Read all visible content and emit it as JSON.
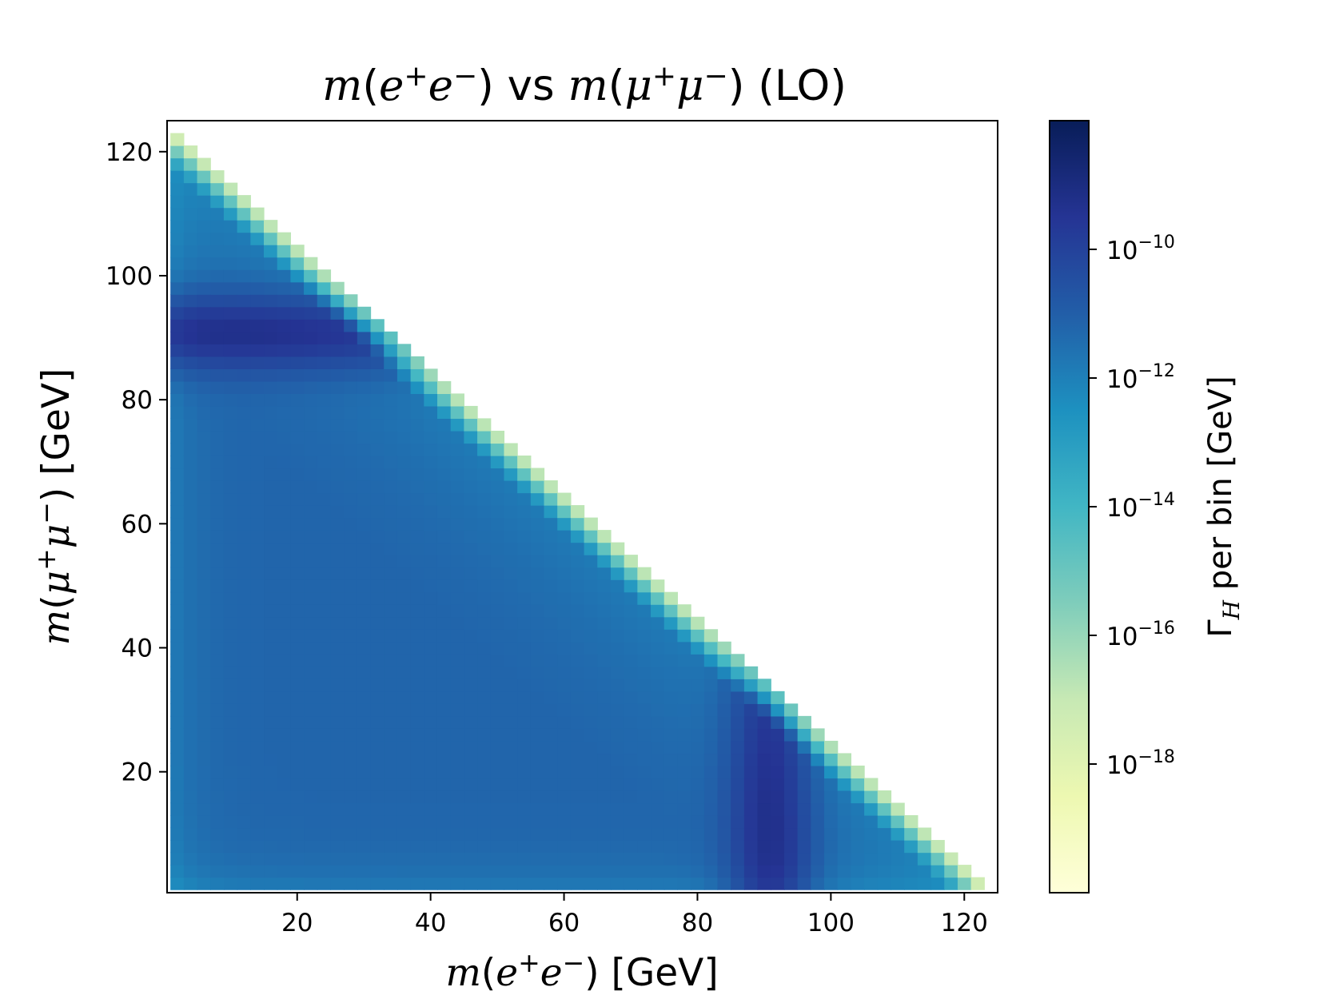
{
  "chart_data": {
    "type": "heatmap",
    "title": "m(e⁺e⁻) vs m(μ⁺μ⁻) (LO)",
    "xlabel": "m(e⁺e⁻) [GeV]",
    "ylabel": "m(μ⁺μ⁻) [GeV]",
    "colorbar_label": "Γ_H per bin [GeV]",
    "xlim": [
      0.5,
      125
    ],
    "ylim": [
      0.5,
      125
    ],
    "x_ticks": [
      20,
      40,
      60,
      80,
      100,
      120
    ],
    "y_ticks": [
      20,
      40,
      60,
      80,
      100,
      120
    ],
    "bin_width_gev": 2,
    "colorbar": {
      "scale": "log",
      "range": [
        1e-20,
        1e-08
      ],
      "tick_exponents": [
        -10,
        -12,
        -14,
        -16,
        -18
      ],
      "tick_base": "10",
      "colormap": "YlGnBu"
    },
    "description_values": {
      "kinematic_boundary": "m(e⁺e⁻) + m(μ⁺μ⁻) ≤ 125 GeV",
      "z_peak_gev": 91,
      "peak_log10_density": -8.5,
      "typical_log10_density": -11.5,
      "boundary_log10_density": -18
    }
  }
}
